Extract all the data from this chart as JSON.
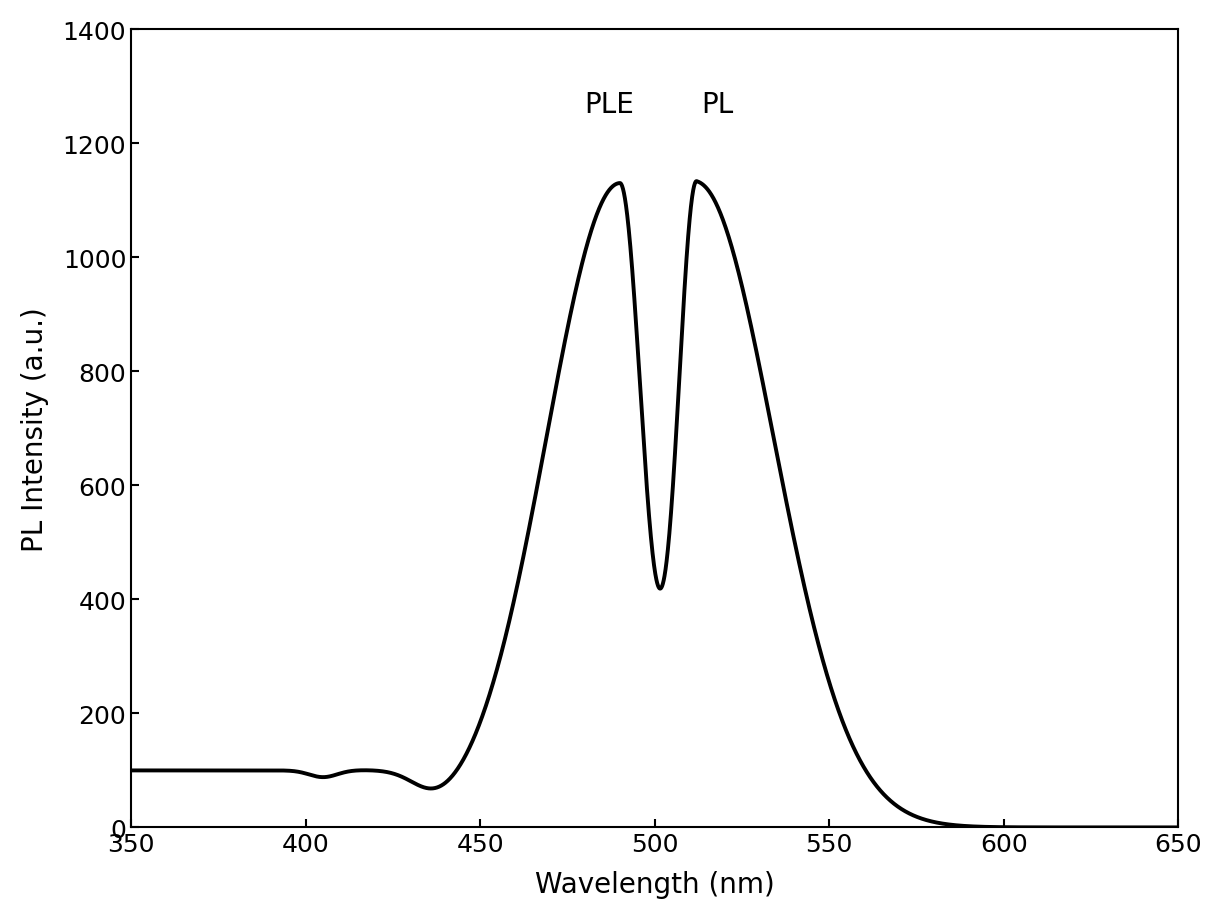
{
  "xlabel": "Wavelength (nm)",
  "ylabel": "PL Intensity (a.u.)",
  "xlim": [
    350,
    650
  ],
  "ylim": [
    0,
    1400
  ],
  "xticks": [
    350,
    400,
    450,
    500,
    550,
    600,
    650
  ],
  "yticks": [
    0,
    200,
    400,
    600,
    800,
    1000,
    1200,
    1400
  ],
  "ple_label": "PLE",
  "pl_label": "PL",
  "ple_peak_x": 490,
  "pl_peak_x": 512,
  "ple_peak_y": 1230,
  "pl_peak_y": 1230,
  "valley_x": 502,
  "valley_y": 420,
  "baseline_level": 100,
  "line_color": "#000000",
  "line_width": 2.8,
  "background_color": "#ffffff",
  "label_fontsize": 20,
  "tick_fontsize": 18,
  "annotation_fontsize": 20
}
